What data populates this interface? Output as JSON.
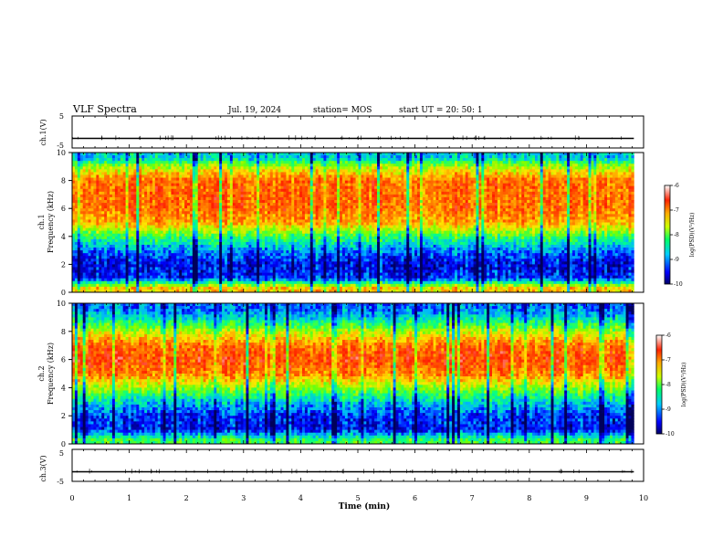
{
  "header": {
    "title": "VLF Spectra",
    "date": "Jul. 19, 2024",
    "station": "station= MOS",
    "start": "start UT = 20: 50: 1"
  },
  "colors": {
    "spectrum_low": "#00007f",
    "spectrum_mid": "#00ff80",
    "spectrum_high": "#ff2200",
    "trace": "#000000"
  },
  "chart_data": [
    {
      "type": "line",
      "title": "",
      "ylabel": "ch.1(V)",
      "ylim": [
        -5,
        5
      ],
      "yticks": [
        "5",
        "-5"
      ],
      "xlim": [
        0,
        10
      ],
      "series": [
        {
          "x": [
            0,
            9.83
          ],
          "values": [
            -2.0,
            -2.0
          ]
        }
      ]
    },
    {
      "type": "heatmap",
      "ylabel_top": "ch.1",
      "ylabel": "Frequency (kHz)",
      "ylim": [
        0,
        10
      ],
      "yticks": [
        "0",
        "2",
        "4",
        "6",
        "8",
        "10"
      ],
      "xlim": [
        0,
        10
      ],
      "data_end_min": 9.83,
      "band_profile_khz": [
        0.3,
        1.0,
        2.0,
        3.0,
        4.0,
        5.0,
        6.0,
        7.0,
        8.0,
        9.0,
        9.6
      ],
      "band_log_psd": [
        -7.4,
        -9.4,
        -9.6,
        -9.1,
        -8.3,
        -7.2,
        -6.9,
        -6.9,
        -6.9,
        -7.8,
        -8.8
      ],
      "colorbar": {
        "label": "log(PSD)(V²/Hz)",
        "range": [
          -10,
          -6
        ],
        "ticks": [
          "-6",
          "-7",
          "-8",
          "-9",
          "-10"
        ]
      }
    },
    {
      "type": "heatmap",
      "ylabel_top": "ch.2",
      "ylabel": "Frequency (kHz)",
      "ylim": [
        0,
        10
      ],
      "yticks": [
        "0",
        "2",
        "4",
        "6",
        "8",
        "10"
      ],
      "xlim": [
        0,
        10
      ],
      "data_end_min": 9.83,
      "band_profile_khz": [
        0.3,
        1.0,
        2.0,
        3.0,
        4.0,
        5.0,
        6.0,
        7.0,
        8.0,
        9.0,
        9.6
      ],
      "band_log_psd": [
        -8.3,
        -9.5,
        -9.4,
        -8.8,
        -7.9,
        -7.0,
        -6.7,
        -6.9,
        -7.8,
        -8.8,
        -9.2
      ],
      "colorbar": {
        "label": "log(PSD)(V²/Hz)",
        "range": [
          -10,
          -6
        ],
        "ticks": [
          "-6",
          "-7",
          "-8",
          "-9",
          "-10"
        ]
      }
    },
    {
      "type": "line",
      "title": "",
      "ylabel": "ch.3(V)",
      "ylim": [
        -5,
        5
      ],
      "yticks": [
        "5",
        "-5"
      ],
      "xlim": [
        0,
        10
      ],
      "series": [
        {
          "x": [
            0,
            9.83
          ],
          "values": [
            -2.0,
            -2.0
          ]
        }
      ]
    }
  ],
  "x_axis": {
    "label": "Time (min)",
    "ticks": [
      "0",
      "1",
      "2",
      "3",
      "4",
      "5",
      "6",
      "7",
      "8",
      "9",
      "10"
    ]
  }
}
